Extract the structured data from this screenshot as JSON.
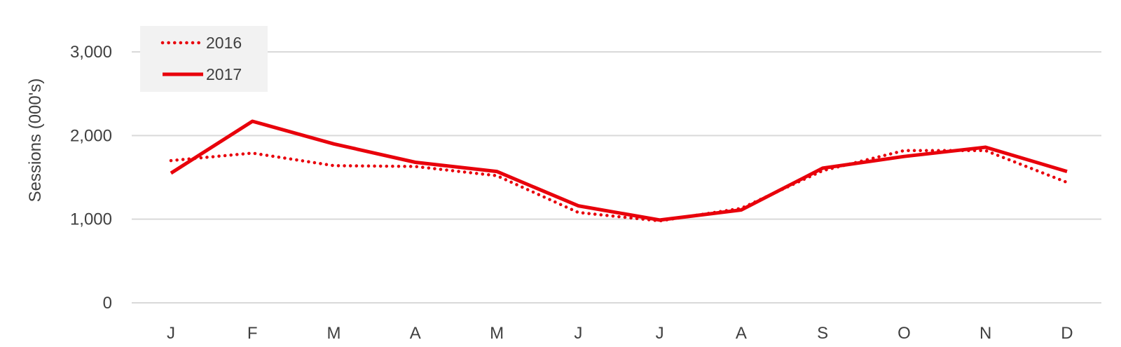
{
  "chart_data": {
    "type": "line",
    "title": "",
    "xlabel": "",
    "ylabel": "Sessions (000's)",
    "categories": [
      "J",
      "F",
      "M",
      "A",
      "M",
      "J",
      "J",
      "A",
      "S",
      "O",
      "N",
      "D"
    ],
    "yticks": [
      "0",
      "1,000",
      "2,000",
      "3,000"
    ],
    "ytick_values": [
      0,
      1000,
      2000,
      3000
    ],
    "ylim": [
      0,
      3000
    ],
    "grid": true,
    "legend_position": "top-left",
    "series": [
      {
        "name": "2016",
        "style": "dotted",
        "color": "#e8000b",
        "values": [
          1700,
          1790,
          1640,
          1630,
          1520,
          1080,
          980,
          1130,
          1580,
          1820,
          1820,
          1440
        ]
      },
      {
        "name": "2017",
        "style": "solid",
        "color": "#e8000b",
        "values": [
          1550,
          2170,
          1900,
          1680,
          1570,
          1160,
          990,
          1110,
          1610,
          1750,
          1860,
          1570
        ]
      }
    ]
  }
}
